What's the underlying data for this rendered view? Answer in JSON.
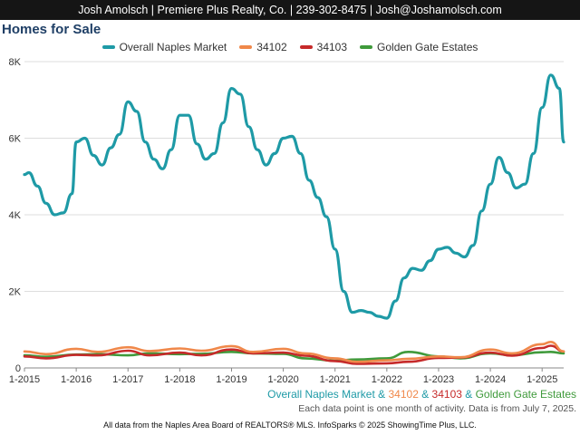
{
  "header": {
    "contact": "Josh Amolsch | Premiere Plus Realty, Co. | 239-302-8475 | Josh@Joshamolsch.com"
  },
  "chart_data": {
    "type": "line",
    "title": "Homes for Sale",
    "x_ticks": [
      "1-2015",
      "1-2016",
      "1-2017",
      "1-2018",
      "1-2019",
      "1-2020",
      "1-2021",
      "1-2022",
      "1-2023",
      "1-2024",
      "1-2025"
    ],
    "y_ticks": [
      "0",
      "2K",
      "4K",
      "6K",
      "8K"
    ],
    "ylim": [
      0,
      8000
    ],
    "xlim": [
      "2015-01",
      "2025-06"
    ],
    "legend_position": "top-center",
    "grid": "horizontal",
    "series": [
      {
        "name": "Overall Naples Market",
        "color": "#1e9aa6",
        "x": [
          "2015-01",
          "2015-02",
          "2015-04",
          "2015-06",
          "2015-08",
          "2015-10",
          "2015-12",
          "2016-01",
          "2016-03",
          "2016-05",
          "2016-07",
          "2016-09",
          "2016-11",
          "2017-01",
          "2017-03",
          "2017-05",
          "2017-07",
          "2017-09",
          "2017-11",
          "2018-01",
          "2018-03",
          "2018-05",
          "2018-07",
          "2018-09",
          "2018-11",
          "2019-01",
          "2019-03",
          "2019-05",
          "2019-07",
          "2019-09",
          "2019-11",
          "2020-01",
          "2020-03",
          "2020-05",
          "2020-07",
          "2020-09",
          "2020-11",
          "2021-01",
          "2021-03",
          "2021-05",
          "2021-07",
          "2021-09",
          "2021-11",
          "2022-01",
          "2022-03",
          "2022-05",
          "2022-07",
          "2022-09",
          "2022-11",
          "2023-01",
          "2023-03",
          "2023-05",
          "2023-07",
          "2023-09",
          "2023-11",
          "2024-01",
          "2024-03",
          "2024-05",
          "2024-07",
          "2024-09",
          "2024-11",
          "2025-01",
          "2025-03",
          "2025-05",
          "2025-06"
        ],
        "values": [
          5050,
          5100,
          4750,
          4300,
          4000,
          4050,
          4550,
          5900,
          6000,
          5550,
          5300,
          5750,
          6100,
          6950,
          6700,
          5900,
          5450,
          5200,
          5700,
          6600,
          6600,
          5850,
          5450,
          5600,
          6400,
          7300,
          7150,
          6300,
          5700,
          5300,
          5600,
          6000,
          6050,
          5600,
          4900,
          4450,
          3950,
          3100,
          2000,
          1450,
          1500,
          1450,
          1350,
          1300,
          1750,
          2350,
          2600,
          2550,
          2800,
          3100,
          3150,
          3000,
          2900,
          3200,
          4100,
          4800,
          5500,
          5100,
          4700,
          4800,
          5600,
          6800,
          7650,
          7300,
          5900
        ]
      },
      {
        "name": "34102",
        "color": "#f0884a",
        "x": [
          "2015-01",
          "2015-06",
          "2016-01",
          "2016-06",
          "2017-01",
          "2017-06",
          "2018-01",
          "2018-06",
          "2019-01",
          "2019-06",
          "2020-01",
          "2020-06",
          "2021-01",
          "2021-06",
          "2022-01",
          "2022-06",
          "2023-01",
          "2023-06",
          "2024-01",
          "2024-06",
          "2025-01",
          "2025-03",
          "2025-06"
        ],
        "values": [
          430,
          360,
          500,
          420,
          540,
          440,
          510,
          450,
          570,
          420,
          500,
          380,
          250,
          160,
          200,
          240,
          300,
          280,
          480,
          380,
          620,
          680,
          430
        ]
      },
      {
        "name": "34103",
        "color": "#c62a2a",
        "x": [
          "2015-01",
          "2015-06",
          "2016-01",
          "2016-06",
          "2017-01",
          "2017-06",
          "2018-01",
          "2018-06",
          "2019-01",
          "2019-06",
          "2020-01",
          "2020-06",
          "2021-01",
          "2021-06",
          "2022-01",
          "2022-06",
          "2023-01",
          "2023-06",
          "2024-01",
          "2024-06",
          "2025-01",
          "2025-03",
          "2025-06"
        ],
        "values": [
          300,
          250,
          340,
          330,
          450,
          330,
          400,
          330,
          480,
          380,
          400,
          320,
          180,
          110,
          120,
          160,
          260,
          270,
          400,
          320,
          520,
          580,
          430
        ]
      },
      {
        "name": "Golden Gate Estates",
        "color": "#3f9a3b",
        "x": [
          "2015-01",
          "2015-06",
          "2016-01",
          "2016-06",
          "2017-01",
          "2017-06",
          "2018-01",
          "2018-06",
          "2019-01",
          "2019-06",
          "2020-01",
          "2020-06",
          "2021-01",
          "2021-06",
          "2022-01",
          "2022-06",
          "2023-01",
          "2023-06",
          "2024-01",
          "2024-06",
          "2025-01",
          "2025-03",
          "2025-06"
        ],
        "values": [
          330,
          290,
          350,
          360,
          330,
          380,
          360,
          370,
          420,
          380,
          370,
          250,
          190,
          220,
          250,
          420,
          300,
          250,
          380,
          330,
          410,
          420,
          380
        ]
      }
    ]
  },
  "footer": {
    "series_label_1": "Overall Naples Market",
    "series_label_2": "34102",
    "series_label_3": "34103",
    "series_label_4": "Golden Gate Estates",
    "amp": " & ",
    "activity_note": "Each data point is one month of activity. Data is from July 7, 2025.",
    "credit": "All data from the Naples Area Board of REALTORS® MLS. InfoSparks © 2025 ShowingTime Plus, LLC."
  }
}
